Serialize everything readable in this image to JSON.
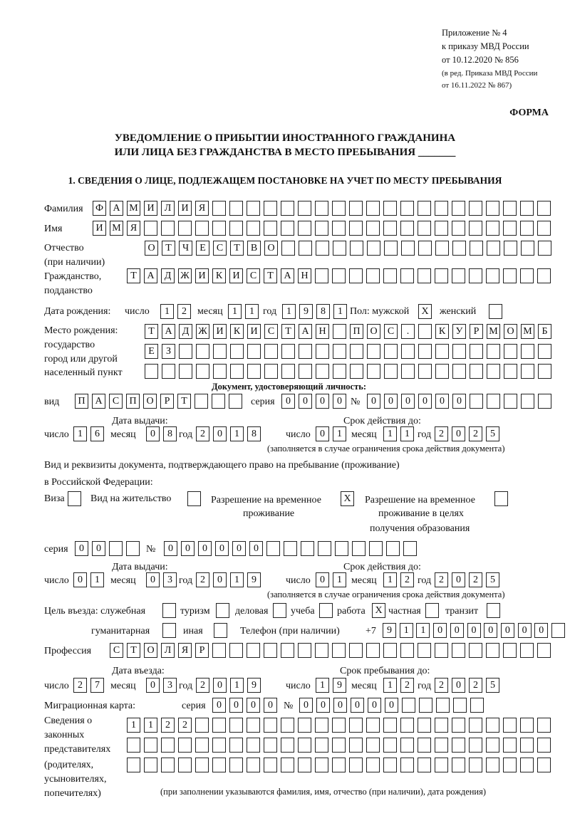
{
  "header": {
    "appendix": "Приложение № 4",
    "order": "к приказу МВД России",
    "date": "от 10.12.2020 № 856",
    "edition1": "(в ред. Приказа МВД России",
    "edition2": "от 16.11.2022 № 867)",
    "form_label": "ФОРМА",
    "title1": "УВЕДОМЛЕНИЕ О ПРИБЫТИИ ИНОСТРАННОГО ГРАЖДАНИНА",
    "title2": "ИЛИ ЛИЦА БЕЗ ГРАЖДАНСТВА В МЕСТО ПРЕБЫВАНИЯ _______",
    "section1": "1. СВЕДЕНИЯ О ЛИЦЕ, ПОДЛЕЖАЩЕМ ПОСТАНОВКЕ НА УЧЕТ ПО МЕСТУ ПРЕБЫВАНИЯ"
  },
  "labels": {
    "surname": "Фамилия",
    "name": "Имя",
    "patronymic": "Отчество",
    "patronymic2": "(при наличии)",
    "citizenship": "Гражданство,",
    "citizenship2": "подданство",
    "birth_date": "Дата рождения:",
    "day": "число",
    "month": "месяц",
    "year": "год",
    "sex": "Пол: мужской",
    "female": "женский",
    "birthplace1": "Место рождения:",
    "birthplace2": "государство",
    "birthplace3": "город или другой",
    "birthplace4": "населенный пункт",
    "id_doc": "Документ, удостоверяющий личность:",
    "kind": "вид",
    "series": "серия",
    "number": "№",
    "issue_date": "Дата выдачи:",
    "valid_until": "Срок действия до:",
    "valid_note": "(заполняется в случае ограничения срока действия документа)",
    "right_doc1": "Вид и реквизиты документа, подтверждающего право на пребывание (проживание)",
    "right_doc2": "в Российской Федерации:",
    "visa": "Виза",
    "residence": "Вид на жительство",
    "trp1": "Разрешение на временное",
    "trp2": "проживание",
    "trp_edu1": "Разрешение на временное",
    "trp_edu2": "проживание в целях",
    "trp_edu3": "получения образования",
    "purpose": "Цель въезда: служебная",
    "tourism": "туризм",
    "business": "деловая",
    "study": "учеба",
    "work": "работа",
    "private": "частная",
    "transit": "транзит",
    "humanitarian": "гуманитарная",
    "other": "иная",
    "phone": "Телефон (при наличии)",
    "phone_prefix": "+7",
    "profession": "Профессия",
    "entry_date": "Дата въезда:",
    "stay_until": "Срок пребывания до:",
    "migration_card": "Миграционная карта:",
    "rep1": "Сведения о",
    "rep2": "законных",
    "rep3": "представителях",
    "rep4": "(родителях,",
    "rep5": "усыновителях,",
    "rep6": "попечителях)",
    "rep_note": "(при заполнении указываются фамилия, имя, отчество (при наличии), дата рождения)"
  },
  "fields": {
    "surname": [
      "Ф",
      "А",
      "М",
      "И",
      "Л",
      "И",
      "Я",
      "",
      "",
      "",
      "",
      "",
      "",
      "",
      "",
      "",
      "",
      "",
      "",
      "",
      "",
      "",
      "",
      "",
      "",
      "",
      ""
    ],
    "name": [
      "И",
      "М",
      "Я",
      "",
      "",
      "",
      "",
      "",
      "",
      "",
      "",
      "",
      "",
      "",
      "",
      "",
      "",
      "",
      "",
      "",
      "",
      "",
      "",
      "",
      "",
      "",
      ""
    ],
    "patronymic": [
      "О",
      "Т",
      "Ч",
      "Е",
      "С",
      "Т",
      "В",
      "О",
      "",
      "",
      "",
      "",
      "",
      "",
      "",
      "",
      "",
      "",
      "",
      "",
      "",
      "",
      "",
      ""
    ],
    "citizenship": [
      "Т",
      "А",
      "Д",
      "Ж",
      "И",
      "К",
      "И",
      "С",
      "Т",
      "А",
      "Н",
      "",
      "",
      "",
      "",
      "",
      "",
      "",
      "",
      "",
      "",
      "",
      "",
      "",
      ""
    ],
    "birth_day": [
      "1",
      "2"
    ],
    "birth_month": [
      "1",
      "1"
    ],
    "birth_year": [
      "1",
      "9",
      "8",
      "1"
    ],
    "sex_male": "X",
    "sex_female": "",
    "birthplace_1": [
      "Т",
      "А",
      "Д",
      "Ж",
      "И",
      "К",
      "И",
      "С",
      "Т",
      "А",
      "Н",
      "",
      "П",
      "О",
      "С",
      ".",
      "",
      "К",
      "У",
      "Р",
      "М",
      "О",
      "М",
      "Б"
    ],
    "birthplace_2": [
      "Е",
      "З",
      "",
      "",
      "",
      "",
      "",
      "",
      "",
      "",
      "",
      "",
      "",
      "",
      "",
      "",
      "",
      "",
      "",
      "",
      "",
      "",
      "",
      ""
    ],
    "birthplace_3": [
      "",
      "",
      "",
      "",
      "",
      "",
      "",
      "",
      "",
      "",
      "",
      "",
      "",
      "",
      "",
      "",
      "",
      "",
      "",
      "",
      "",
      "",
      "",
      ""
    ],
    "id_kind": [
      "П",
      "А",
      "С",
      "П",
      "О",
      "Р",
      "Т",
      "",
      "",
      ""
    ],
    "id_series": [
      "0",
      "0",
      "0",
      "0"
    ],
    "id_number": [
      "0",
      "0",
      "0",
      "0",
      "0",
      "0",
      "",
      "",
      "",
      "",
      ""
    ],
    "id_issue_day": [
      "1",
      "6"
    ],
    "id_issue_month": [
      "0",
      "8"
    ],
    "id_issue_year": [
      "2",
      "0",
      "1",
      "8"
    ],
    "id_valid_day": [
      "0",
      "1"
    ],
    "id_valid_month": [
      "1",
      "1"
    ],
    "id_valid_year": [
      "2",
      "0",
      "2",
      "5"
    ],
    "doc_visa": "",
    "doc_residence": "",
    "doc_trp": "X",
    "doc_trp_edu": "",
    "doc_series": [
      "0",
      "0",
      "",
      ""
    ],
    "doc_number": [
      "0",
      "0",
      "0",
      "0",
      "0",
      "0",
      "",
      "",
      "",
      "",
      "",
      "",
      "",
      "",
      ""
    ],
    "doc_issue_day": [
      "0",
      "1"
    ],
    "doc_issue_month": [
      "0",
      "3"
    ],
    "doc_issue_year": [
      "2",
      "0",
      "1",
      "9"
    ],
    "doc_valid_day": [
      "0",
      "1"
    ],
    "doc_valid_month": [
      "1",
      "2"
    ],
    "doc_valid_year": [
      "2",
      "0",
      "2",
      "5"
    ],
    "purpose_official": "",
    "purpose_tourism": "",
    "purpose_business": "",
    "purpose_study": "",
    "purpose_work": "X",
    "purpose_private": "",
    "purpose_transit": "",
    "purpose_humanitarian": "",
    "purpose_other": "",
    "phone": [
      "9",
      "1",
      "1",
      "0",
      "0",
      "0",
      "0",
      "0",
      "0",
      "0",
      ""
    ],
    "profession": [
      "С",
      "Т",
      "О",
      "Л",
      "Я",
      "Р",
      "",
      "",
      "",
      "",
      "",
      "",
      "",
      "",
      "",
      "",
      "",
      "",
      "",
      "",
      "",
      "",
      "",
      "",
      "",
      ""
    ],
    "entry_day": [
      "2",
      "7"
    ],
    "entry_month": [
      "0",
      "3"
    ],
    "entry_year": [
      "2",
      "0",
      "1",
      "9"
    ],
    "stay_day": [
      "1",
      "9"
    ],
    "stay_month": [
      "1",
      "2"
    ],
    "stay_year": [
      "2",
      "0",
      "2",
      "5"
    ],
    "mc_series": [
      "0",
      "0",
      "0",
      "0"
    ],
    "mc_number": [
      "0",
      "0",
      "0",
      "0",
      "0",
      "0",
      "",
      "",
      "",
      "",
      ""
    ],
    "rep_1": [
      "1",
      "1",
      "2",
      "2",
      "",
      "",
      "",
      "",
      "",
      "",
      "",
      "",
      "",
      "",
      "",
      "",
      "",
      "",
      "",
      "",
      "",
      "",
      "",
      "",
      ""
    ],
    "rep_2": [
      "",
      "",
      "",
      "",
      "",
      "",
      "",
      "",
      "",
      "",
      "",
      "",
      "",
      "",
      "",
      "",
      "",
      "",
      "",
      "",
      "",
      "",
      "",
      "",
      ""
    ],
    "rep_3": [
      "",
      "",
      "",
      "",
      "",
      "",
      "",
      "",
      "",
      "",
      "",
      "",
      "",
      "",
      "",
      "",
      "",
      "",
      "",
      "",
      "",
      "",
      "",
      "",
      ""
    ]
  }
}
